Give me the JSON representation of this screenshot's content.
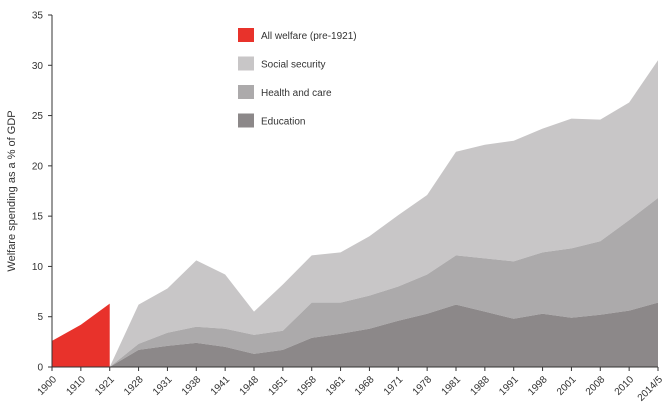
{
  "chart_data": {
    "type": "area",
    "stacked": true,
    "ylabel": "Welfare spending as a % of GDP",
    "xlabel": "",
    "ylim": [
      0,
      35
    ],
    "yticks": [
      "0",
      "5",
      "10",
      "15",
      "20",
      "25",
      "30",
      "35"
    ],
    "categories": [
      "1900",
      "1910",
      "1921",
      "1928",
      "1931",
      "1938",
      "1941",
      "1948",
      "1951",
      "1958",
      "1961",
      "1968",
      "1971",
      "1978",
      "1981",
      "1988",
      "1991",
      "1998",
      "2001",
      "2008",
      "2010",
      "2014/5"
    ],
    "legend_position": "top-center",
    "series": [
      {
        "name": "All welfare (pre-1921)",
        "color": "#e8322b",
        "values": [
          2.6,
          4.2,
          6.3,
          null,
          null,
          null,
          null,
          null,
          null,
          null,
          null,
          null,
          null,
          null,
          null,
          null,
          null,
          null,
          null,
          null,
          null,
          null
        ]
      },
      {
        "name": "Education",
        "color": "#8c8889",
        "values": [
          null,
          null,
          0.0,
          1.7,
          2.1,
          2.4,
          2.0,
          1.3,
          1.7,
          2.9,
          3.3,
          3.8,
          4.6,
          5.3,
          6.2,
          5.5,
          4.8,
          5.3,
          4.9,
          5.2,
          5.6,
          6.4
        ]
      },
      {
        "name": "Health and care",
        "color": "#acaaab",
        "values": [
          null,
          null,
          0.0,
          0.6,
          1.3,
          1.6,
          1.8,
          1.9,
          1.9,
          3.5,
          3.1,
          3.3,
          3.4,
          3.9,
          4.9,
          5.3,
          5.7,
          6.1,
          6.9,
          7.3,
          9.0,
          10.4
        ]
      },
      {
        "name": "Social security",
        "color": "#c8c6c7",
        "values": [
          null,
          null,
          0.0,
          3.9,
          4.4,
          6.6,
          5.4,
          2.3,
          4.6,
          4.7,
          5.0,
          5.9,
          7.1,
          7.9,
          10.3,
          11.3,
          12.0,
          12.3,
          12.9,
          12.1,
          11.7,
          13.7
        ]
      }
    ]
  }
}
